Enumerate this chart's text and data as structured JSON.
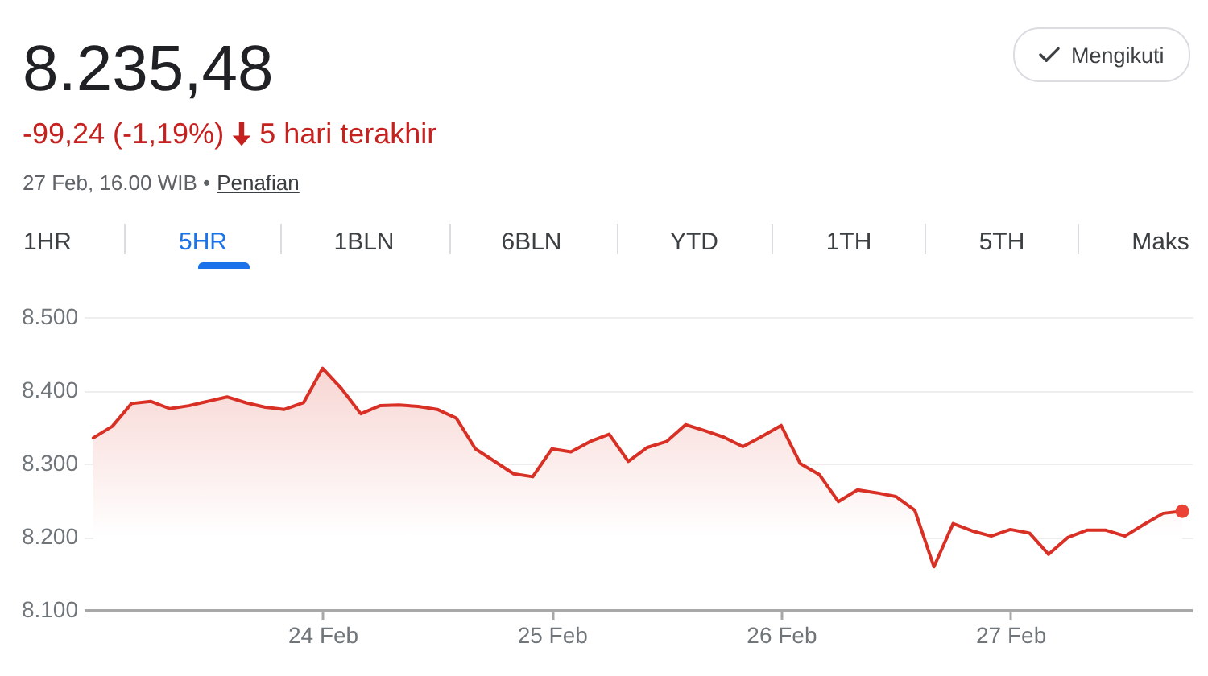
{
  "chart_data": {
    "type": "area",
    "title": "8.235,48",
    "subtitle": "-99,24 (-1,19%)",
    "annotations": [
      "5 hari terakhir",
      "27 Feb, 16.00 WIB •",
      "Penafian",
      "Mengikuti",
      "1HR",
      "5HR",
      "1BLN",
      "6BLN",
      "YTD",
      "1TH",
      "5TH",
      "Maks"
    ],
    "categories": [
      null,
      null,
      null,
      null,
      null,
      null,
      null,
      null,
      null,
      null,
      null,
      null,
      "24 Feb",
      null,
      null,
      null,
      null,
      null,
      null,
      null,
      null,
      null,
      null,
      null,
      "25 Feb",
      null,
      null,
      null,
      null,
      null,
      null,
      null,
      null,
      null,
      null,
      null,
      "26 Feb",
      null,
      null,
      null,
      null,
      null,
      null,
      null,
      null,
      null,
      null,
      null,
      "27 Feb",
      null,
      null,
      null,
      null,
      null,
      null,
      null,
      null,
      null
    ],
    "ylim": [
      8100,
      8500
    ],
    "yticks": [
      {
        "value": 8100,
        "label": "8.100"
      },
      {
        "value": 8200,
        "label": "8.200"
      },
      {
        "value": 8300,
        "label": "8.300"
      },
      {
        "value": 8400,
        "label": "8.400"
      },
      {
        "value": 8500,
        "label": "8.500"
      }
    ],
    "grid": "y",
    "series": [
      {
        "color": "#d93025",
        "values": [
          8335,
          8351,
          8382,
          8385,
          8375,
          8379,
          8385,
          8391,
          8383,
          8377,
          8374,
          8383,
          8430,
          8402,
          8368,
          8379,
          8380,
          8378,
          8374,
          8362,
          8320,
          8303,
          8286,
          8282,
          8320,
          8316,
          8330,
          8340,
          8303,
          8322,
          8330,
          8353,
          8345,
          8336,
          8323,
          8337,
          8352,
          8300,
          8285,
          8248,
          8264,
          8260,
          8255,
          8236,
          8159,
          8218,
          8208,
          8201,
          8210,
          8205,
          8176,
          8199,
          8209,
          8209,
          8201,
          8217,
          8232,
          8235
        ]
      },
      {
        "type": "scatter",
        "color": "#ea4335",
        "marker": "circle",
        "values": [
          null,
          null,
          null,
          null,
          null,
          null,
          null,
          null,
          null,
          null,
          null,
          null,
          null,
          null,
          null,
          null,
          null,
          null,
          null,
          null,
          null,
          null,
          null,
          null,
          null,
          null,
          null,
          null,
          null,
          null,
          null,
          null,
          null,
          null,
          null,
          null,
          null,
          null,
          null,
          null,
          null,
          null,
          null,
          null,
          null,
          null,
          null,
          null,
          null,
          null,
          null,
          null,
          null,
          null,
          null,
          null,
          null,
          8235
        ]
      }
    ]
  }
}
